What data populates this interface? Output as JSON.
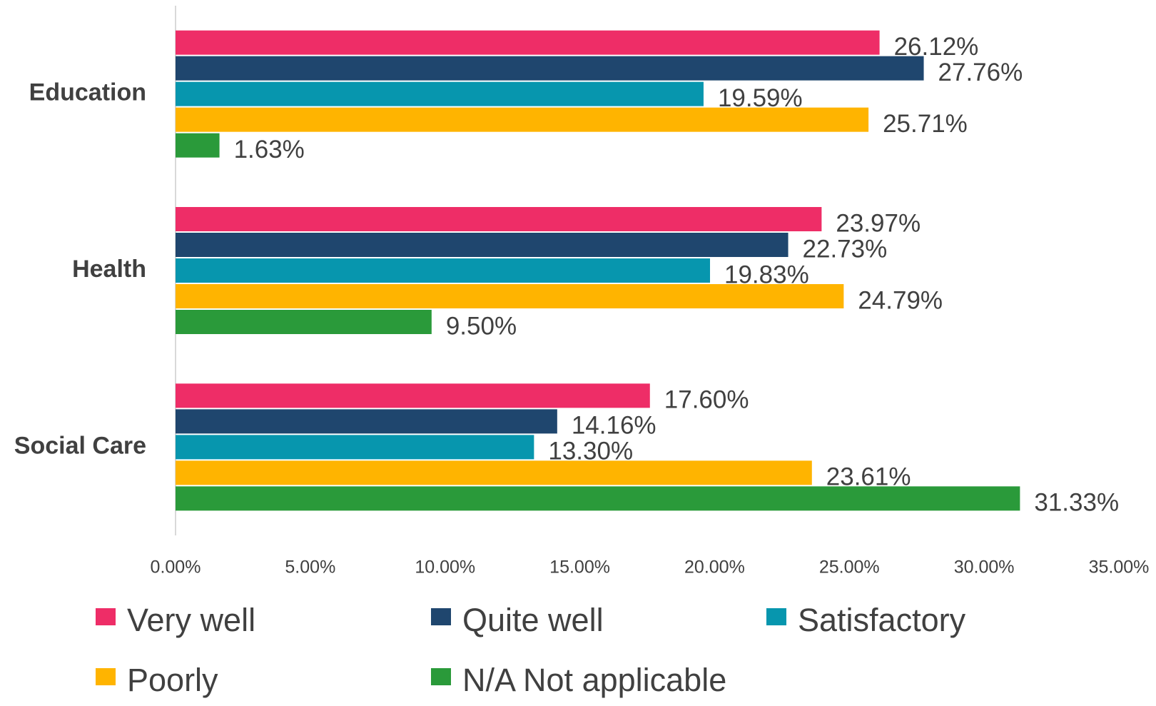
{
  "chart_data": {
    "type": "bar",
    "orientation": "horizontal",
    "categories": [
      "Education",
      "Health",
      "Social Care"
    ],
    "series": [
      {
        "name": "Very well",
        "color": "#ee2d67",
        "values": [
          26.12,
          23.97,
          17.6
        ],
        "value_labels": [
          "26.12%",
          "23.97%",
          "17.60%"
        ]
      },
      {
        "name": "Quite well",
        "color": "#1f466e",
        "values": [
          27.76,
          22.73,
          14.16
        ],
        "value_labels": [
          "27.76%",
          "22.73%",
          "14.16%"
        ]
      },
      {
        "name": "Satisfactory",
        "color": "#0796ae",
        "values": [
          19.59,
          19.83,
          13.3
        ],
        "value_labels": [
          "19.59%",
          "19.83%",
          "13.30%"
        ]
      },
      {
        "name": "Poorly",
        "color": "#ffb400",
        "values": [
          25.71,
          24.79,
          23.61
        ],
        "value_labels": [
          "25.71%",
          "24.79%",
          "23.61%"
        ]
      },
      {
        "name": "N/A Not applicable",
        "color": "#2a9a3a",
        "values": [
          1.63,
          9.5,
          31.33
        ],
        "value_labels": [
          "1.63%",
          "9.50%",
          "31.33%"
        ]
      }
    ],
    "xlim": [
      0,
      35
    ],
    "xticks": [
      {
        "value": 0,
        "label": "0.00%"
      },
      {
        "value": 5,
        "label": "5.00%"
      },
      {
        "value": 10,
        "label": "10.00%"
      },
      {
        "value": 15,
        "label": "15.00%"
      },
      {
        "value": 20,
        "label": "20.00%"
      },
      {
        "value": 25,
        "label": "25.00%"
      },
      {
        "value": 30,
        "label": "30.00%"
      },
      {
        "value": 35,
        "label": "35.00%"
      }
    ],
    "grid": false,
    "legend": "bottom"
  }
}
